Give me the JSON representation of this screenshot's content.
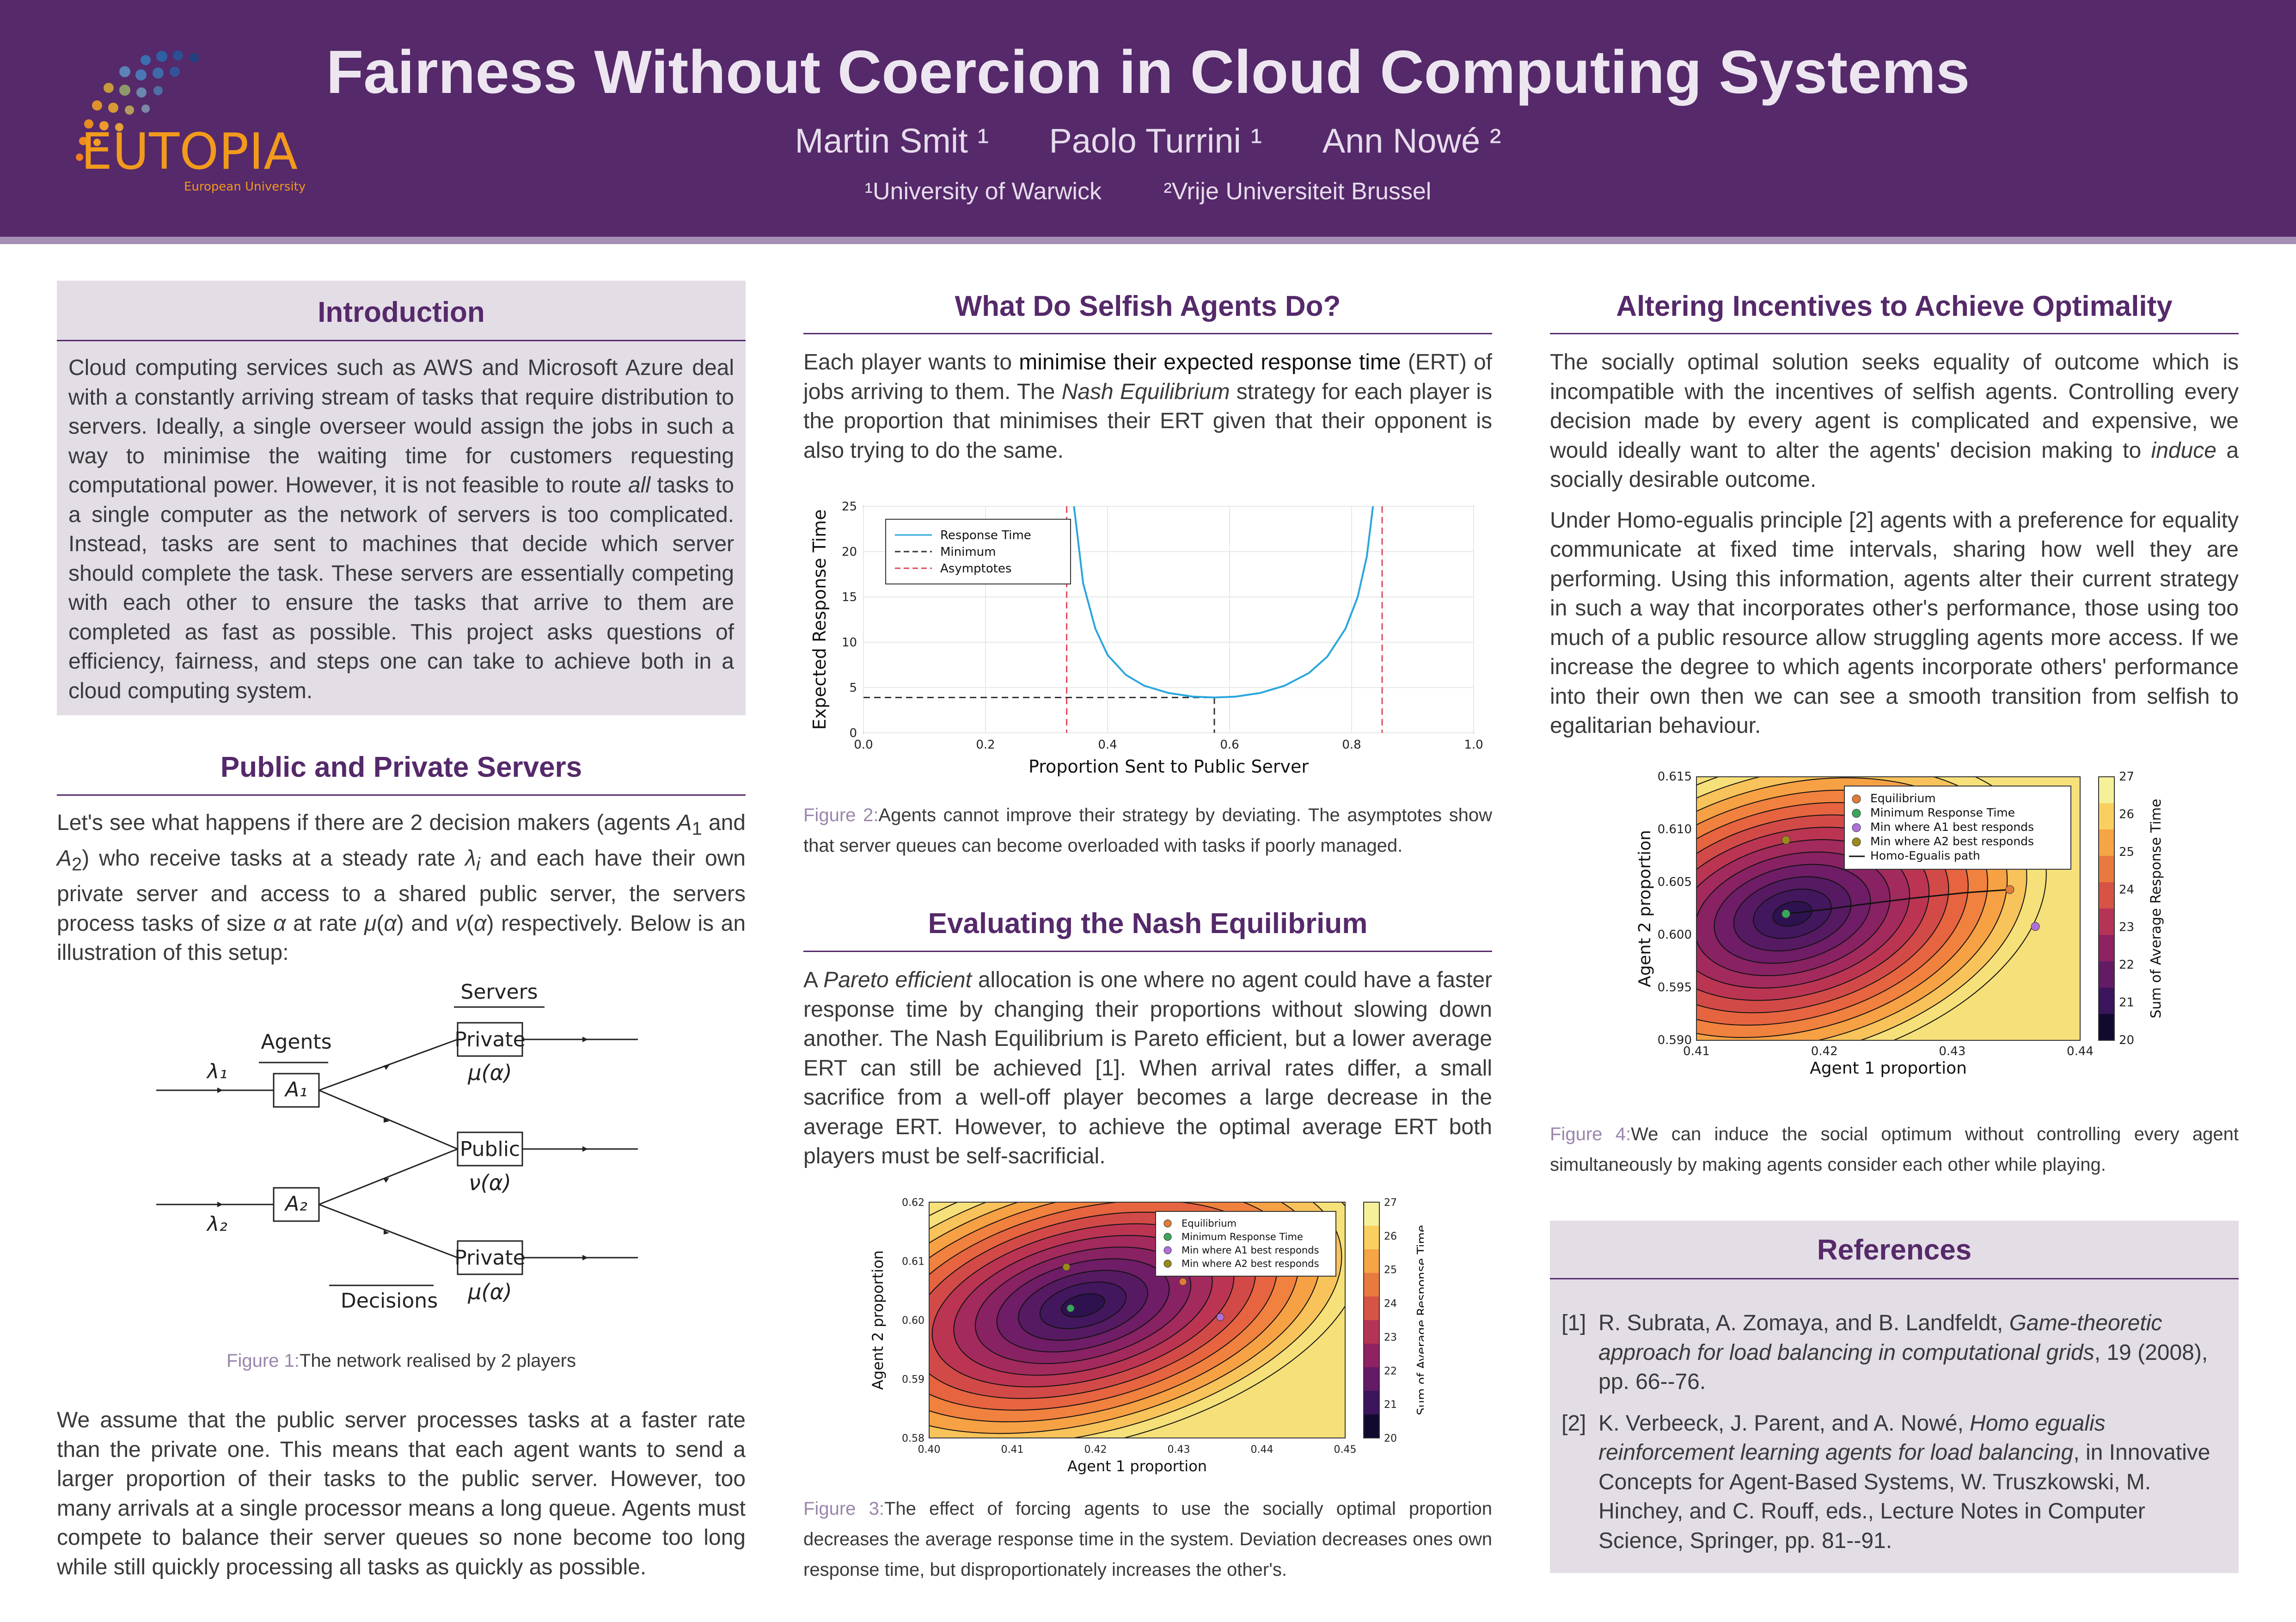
{
  "header": {
    "title": "Fairness Without Coercion in Cloud Computing Systems",
    "authors": [
      "Martin Smit ¹",
      "Paolo Turrini ¹",
      "Ann Nowé ²"
    ],
    "affiliations": [
      "¹University of Warwick",
      "²Vrije Universiteit Brussel"
    ],
    "logo_text": "EUTOPIA",
    "logo_subtext": "European University"
  },
  "introduction": {
    "heading": "Introduction",
    "text_before": "Cloud computing services such as AWS and Microsoft Azure deal with a constantly arriving stream of tasks that require distribution to servers. Ideally, a single overseer would assign the jobs in such a way to minimise the waiting time for customers requesting computational power. However, it is not feasible to route ",
    "text_em": "all",
    "text_after": " tasks to a single computer as the network of servers is too complicated. Instead, tasks are sent to machines that decide which server should complete the task. These servers are essentially competing with each other to ensure the tasks that arrive to them are completed as fast as possible. This project asks questions of efficiency, fairness, and steps one can take to achieve both in a cloud computing system."
  },
  "public_private": {
    "heading": "Public and Private Servers",
    "p1_a": "Let's see what happens if there are 2 decision makers (agents ",
    "p1_b": " and ",
    "p1_c": ") who receive tasks at a steady rate ",
    "p1_d": " and each have their own private server and access to a shared public server, the servers process tasks of size ",
    "p1_e": " at rate ",
    "p1_f": " and ",
    "p1_g": " respectively. Below is an illustration of this setup:",
    "p2": "We assume that the public server processes tasks at a faster rate than the private one. This means that each agent wants to send a larger proportion of their tasks to the public server. However, too many arrivals at a single processor means a long queue. Agents must compete to balance their server queues so none become too long while still quickly processing all tasks as quickly as possible."
  },
  "figure1": {
    "label": "Figure 1:",
    "caption": "The network realised by 2 players",
    "servers_label": "Servers",
    "agents_label": "Agents",
    "decisions_label": "Decisions",
    "private_label": "Private",
    "public_label": "Public",
    "mu": "μ(α)",
    "nu": "ν(α)",
    "lambda1": "λ₁",
    "lambda2": "λ₂",
    "a1": "A₁",
    "a2": "A₂"
  },
  "selfish": {
    "heading": "What Do Selfish Agents Do?",
    "text_a": "Each player wants to ",
    "text_strong": "minimise their expected response time",
    "text_b": " (ERT) of jobs arriving to them. The ",
    "text_em": "Nash Equilibrium",
    "text_c": " strategy for each player is the proportion that minimises their ERT given that their opponent is also trying to do the same."
  },
  "figure2": {
    "label": "Figure 2:",
    "caption": "Agents cannot improve their strategy by deviating. The asymptotes show that server queues can become overloaded with tasks if poorly managed."
  },
  "nash": {
    "heading": "Evaluating the Nash Equilibrium",
    "text_a": "A ",
    "text_em": "Pareto efficient",
    "text_b": " allocation is one where no agent could have a faster response time by changing their proportions without slowing down another. The Nash Equilibrium is Pareto efficient, but a lower average ERT can still be achieved [1]. When arrival rates differ, a small sacrifice from a well-off player becomes a large decrease in the average ERT. However, to achieve the optimal average ERT both players must be self-sacrificial."
  },
  "figure3": {
    "label": "Figure 3:",
    "caption": "The effect of forcing agents to use the socially optimal proportion decreases the average response time in the system. Deviation decreases ones own response time, but disproportionately increases the other's."
  },
  "altering": {
    "heading": "Altering Incentives to Achieve Optimality",
    "p1_a": "The socially optimal solution seeks equality of outcome which is incompatible with the incentives of selfish agents. Controlling every decision made by every agent is complicated and expensive, we would ideally want to alter the agents' decision making to ",
    "p1_em": "induce",
    "p1_b": " a socially desirable outcome.",
    "p2": "Under Homo-egualis principle [2] agents with a preference for equality communicate at fixed time intervals, sharing how well they are performing. Using this information, agents alter their current strategy in such a way that incorporates other's performance, those using too much of a public resource allow struggling agents more access. If we increase the degree to which agents incorporate others' performance into their own then we can see a smooth transition from selfish to egalitarian behaviour."
  },
  "figure4": {
    "label": "Figure 4:",
    "caption": "We can induce the social optimum without controlling every agent simultaneously by making agents consider each other while playing."
  },
  "references": {
    "heading": "References",
    "items": [
      {
        "num": "[1]",
        "a": "R. Subrata, A. Zomaya, and B. Landfeldt, ",
        "em": "Game-theoretic approach for load balancing in computational grids",
        "b": ", 19 (2008), pp. 66--76."
      },
      {
        "num": "[2]",
        "a": "K. Verbeeck, J. Parent, and A. Nowé, ",
        "em": "Homo egualis reinforcement learning agents for load balancing",
        "b": ", in Innovative Concepts for Agent-Based Systems, W. Truszkowski, M. Hinchey, and C. Rouff, eds., Lecture Notes in Computer Science, Springer, pp. 81--91."
      }
    ]
  },
  "chart_data": [
    {
      "type": "line",
      "xlabel": "Proportion Sent to Public Server",
      "ylabel": "Expected Response Time",
      "xlim": [
        0.0,
        1.0
      ],
      "ylim": [
        0,
        25
      ],
      "xticks": [
        "0.0",
        "0.2",
        "0.4",
        "0.6",
        "0.8",
        "1.0"
      ],
      "yticks": [
        "0",
        "5",
        "10",
        "15",
        "20",
        "25"
      ],
      "legend": [
        "Response Time",
        "Minimum",
        "Asymptotes"
      ],
      "legend_position": "top-left",
      "asymptotes_x": [
        0.333,
        0.85
      ],
      "minimum": {
        "x": 0.575,
        "y": 3.9
      },
      "series": [
        {
          "name": "Response Time",
          "x": [
            0.345,
            0.36,
            0.38,
            0.4,
            0.43,
            0.46,
            0.5,
            0.54,
            0.575,
            0.61,
            0.65,
            0.69,
            0.73,
            0.76,
            0.79,
            0.81,
            0.825,
            0.835
          ],
          "y": [
            25,
            16.5,
            11.5,
            8.6,
            6.4,
            5.2,
            4.4,
            4.0,
            3.9,
            4.0,
            4.4,
            5.2,
            6.6,
            8.4,
            11.5,
            15.0,
            19.5,
            25
          ],
          "color": "#2aa6dc"
        }
      ]
    },
    {
      "type": "heatmap",
      "xlabel": "Agent 1 proportion",
      "ylabel": "Agent 2 proportion",
      "colorbar_label": "Sum of Average Response Time",
      "xlim": [
        0.4,
        0.45
      ],
      "ylim": [
        0.58,
        0.62
      ],
      "xticks": [
        "0.40",
        "0.41",
        "0.42",
        "0.43",
        "0.44",
        "0.45"
      ],
      "yticks": [
        "0.58",
        "0.59",
        "0.60",
        "0.61",
        "0.62"
      ],
      "colorbar_ticks": [
        "20",
        "21",
        "22",
        "23",
        "24",
        "25",
        "26",
        "27"
      ],
      "legend": [
        "Equilibrium",
        "Minimum Response Time",
        "Min where A1 best responds",
        "Min where A2 best responds"
      ],
      "legend_position": "top-right",
      "points": [
        {
          "name": "Equilibrium",
          "x": 0.4305,
          "y": 0.6065,
          "color": "#e07b39"
        },
        {
          "name": "Minimum Response Time",
          "x": 0.417,
          "y": 0.602,
          "color": "#3ba55c"
        },
        {
          "name": "Min where A1 best responds",
          "x": 0.435,
          "y": 0.6005,
          "color": "#b070d8"
        },
        {
          "name": "Min where A2 best responds",
          "x": 0.4165,
          "y": 0.609,
          "color": "#9a8a1a"
        }
      ]
    },
    {
      "type": "heatmap",
      "xlabel": "Agent 1 proportion",
      "ylabel": "Agent 2 proportion",
      "colorbar_label": "Sum of Average Response Time",
      "xlim": [
        0.41,
        0.44
      ],
      "ylim": [
        0.59,
        0.615
      ],
      "xticks": [
        "0.41",
        "0.42",
        "0.43",
        "0.44"
      ],
      "yticks": [
        "0.590",
        "0.595",
        "0.600",
        "0.605",
        "0.610",
        "0.615"
      ],
      "colorbar_ticks": [
        "20",
        "21",
        "22",
        "23",
        "24",
        "25",
        "26",
        "27"
      ],
      "legend": [
        "Equilibrium",
        "Minimum Response Time",
        "Min where A1 best responds",
        "Min where A2 best responds",
        "Homo-Egualis path"
      ],
      "legend_position": "top-right",
      "points": [
        {
          "name": "Equilibrium",
          "x": 0.4345,
          "y": 0.6043,
          "color": "#e07b39"
        },
        {
          "name": "Minimum Response Time",
          "x": 0.417,
          "y": 0.602,
          "color": "#3ba55c"
        },
        {
          "name": "Min where A1 best responds",
          "x": 0.4365,
          "y": 0.6008,
          "color": "#b070d8"
        },
        {
          "name": "Min where A2 best responds",
          "x": 0.417,
          "y": 0.609,
          "color": "#9a8a1a"
        }
      ],
      "path": {
        "name": "Homo-Egualis path",
        "x": [
          0.4345,
          0.431,
          0.427,
          0.423,
          0.42,
          0.417
        ],
        "y": [
          0.6043,
          0.604,
          0.6035,
          0.6029,
          0.6024,
          0.602
        ]
      }
    }
  ]
}
